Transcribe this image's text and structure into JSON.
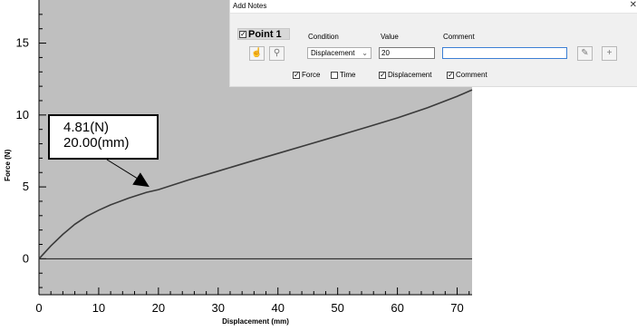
{
  "chart_data": {
    "type": "line",
    "xlabel": "Displacement (mm)",
    "ylabel": "Force (N)",
    "xlim": [
      0,
      72.5
    ],
    "ylim": [
      -2.5,
      18
    ],
    "x_ticks": [
      0,
      10,
      20,
      30,
      40,
      50,
      60,
      70
    ],
    "y_ticks": [
      0,
      5,
      10,
      15
    ],
    "grid": false,
    "series": [
      {
        "x": [
          0,
          2,
          4,
          6,
          8,
          10,
          12,
          15,
          18,
          20,
          25,
          30,
          35,
          40,
          45,
          50,
          55,
          60,
          65,
          70,
          72.5
        ],
        "y": [
          0,
          0.9,
          1.7,
          2.4,
          2.95,
          3.38,
          3.75,
          4.22,
          4.62,
          4.81,
          5.48,
          6.1,
          6.72,
          7.33,
          7.94,
          8.55,
          9.17,
          9.8,
          10.5,
          11.3,
          11.75
        ]
      }
    ],
    "annotation": {
      "lines": [
        "4.81(N)",
        "20.00(mm)"
      ],
      "x": 20.0,
      "y": 4.81
    },
    "colors": {
      "plot_bg": "#bfbfbf",
      "curve": "#3a3a3a"
    }
  },
  "dialog": {
    "title": "Add Notes",
    "close": "✕",
    "point_label": "Point 1",
    "point_checked": true,
    "condition_label": "Condition",
    "value_label": "Value",
    "comment_label": "Comment",
    "condition_value": "Displacement",
    "value_value": "20",
    "comment_value": "",
    "checks": [
      {
        "label": "Force",
        "checked": true
      },
      {
        "label": "Time",
        "checked": false
      },
      {
        "label": "Displacement",
        "checked": true
      },
      {
        "label": "Comment",
        "checked": true
      }
    ]
  }
}
